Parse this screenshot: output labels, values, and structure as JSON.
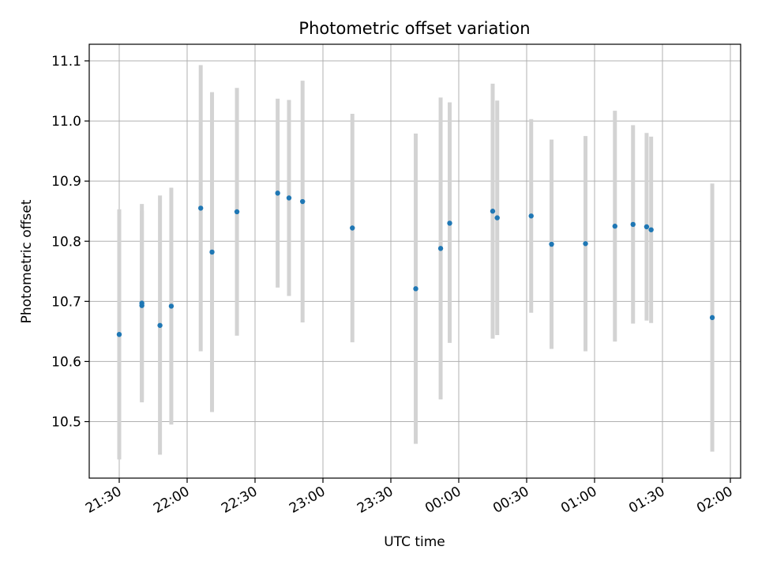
{
  "chart_data": {
    "type": "scatter",
    "title": "Photometric offset variation",
    "xlabel": "UTC time",
    "ylabel": "Photometric offset",
    "x_tick_labels": [
      "21:30",
      "22:00",
      "22:30",
      "23:00",
      "23:30",
      "00:00",
      "00:30",
      "01:00",
      "01:30",
      "02:00"
    ],
    "y_tick_labels": [
      "10.5",
      "10.6",
      "10.7",
      "10.8",
      "10.9",
      "11.0",
      "11.1"
    ],
    "grid": true,
    "legend": "none",
    "colors": {
      "points": "#1f77b4",
      "errorbars": "#d3d3d3",
      "grid": "#b0b0b0"
    },
    "points": [
      {
        "x": "21:30",
        "y": 10.645,
        "ylow": 10.437,
        "yhigh": 10.853
      },
      {
        "x": "21:40",
        "y": 10.693,
        "ylow": 10.535,
        "yhigh": 10.851
      },
      {
        "x": "21:40",
        "y": 10.697,
        "ylow": 10.532,
        "yhigh": 10.862
      },
      {
        "x": "21:48",
        "y": 10.66,
        "ylow": 10.445,
        "yhigh": 10.876
      },
      {
        "x": "21:53",
        "y": 10.692,
        "ylow": 10.495,
        "yhigh": 10.889
      },
      {
        "x": "22:06",
        "y": 10.855,
        "ylow": 10.617,
        "yhigh": 11.093
      },
      {
        "x": "22:11",
        "y": 10.782,
        "ylow": 10.516,
        "yhigh": 11.048
      },
      {
        "x": "22:22",
        "y": 10.849,
        "ylow": 10.643,
        "yhigh": 11.055
      },
      {
        "x": "22:40",
        "y": 10.88,
        "ylow": 10.723,
        "yhigh": 11.037
      },
      {
        "x": "22:45",
        "y": 10.872,
        "ylow": 10.709,
        "yhigh": 11.035
      },
      {
        "x": "22:51",
        "y": 10.866,
        "ylow": 10.665,
        "yhigh": 11.067
      },
      {
        "x": "23:13",
        "y": 10.822,
        "ylow": 10.632,
        "yhigh": 11.012
      },
      {
        "x": "23:41",
        "y": 10.721,
        "ylow": 10.463,
        "yhigh": 10.979
      },
      {
        "x": "23:52",
        "y": 10.788,
        "ylow": 10.537,
        "yhigh": 11.039
      },
      {
        "x": "23:56",
        "y": 10.83,
        "ylow": 10.631,
        "yhigh": 11.031
      },
      {
        "x": "00:15",
        "y": 10.85,
        "ylow": 10.638,
        "yhigh": 11.062
      },
      {
        "x": "00:17",
        "y": 10.839,
        "ylow": 10.644,
        "yhigh": 11.034
      },
      {
        "x": "00:32",
        "y": 10.842,
        "ylow": 10.681,
        "yhigh": 11.003
      },
      {
        "x": "00:41",
        "y": 10.795,
        "ylow": 10.621,
        "yhigh": 10.969
      },
      {
        "x": "00:56",
        "y": 10.796,
        "ylow": 10.617,
        "yhigh": 10.975
      },
      {
        "x": "01:09",
        "y": 10.825,
        "ylow": 10.633,
        "yhigh": 11.017
      },
      {
        "x": "01:17",
        "y": 10.828,
        "ylow": 10.663,
        "yhigh": 10.993
      },
      {
        "x": "01:23",
        "y": 10.824,
        "ylow": 10.668,
        "yhigh": 10.98
      },
      {
        "x": "01:25",
        "y": 10.819,
        "ylow": 10.664,
        "yhigh": 10.974
      },
      {
        "x": "01:52",
        "y": 10.673,
        "ylow": 10.45,
        "yhigh": 10.896
      }
    ]
  }
}
